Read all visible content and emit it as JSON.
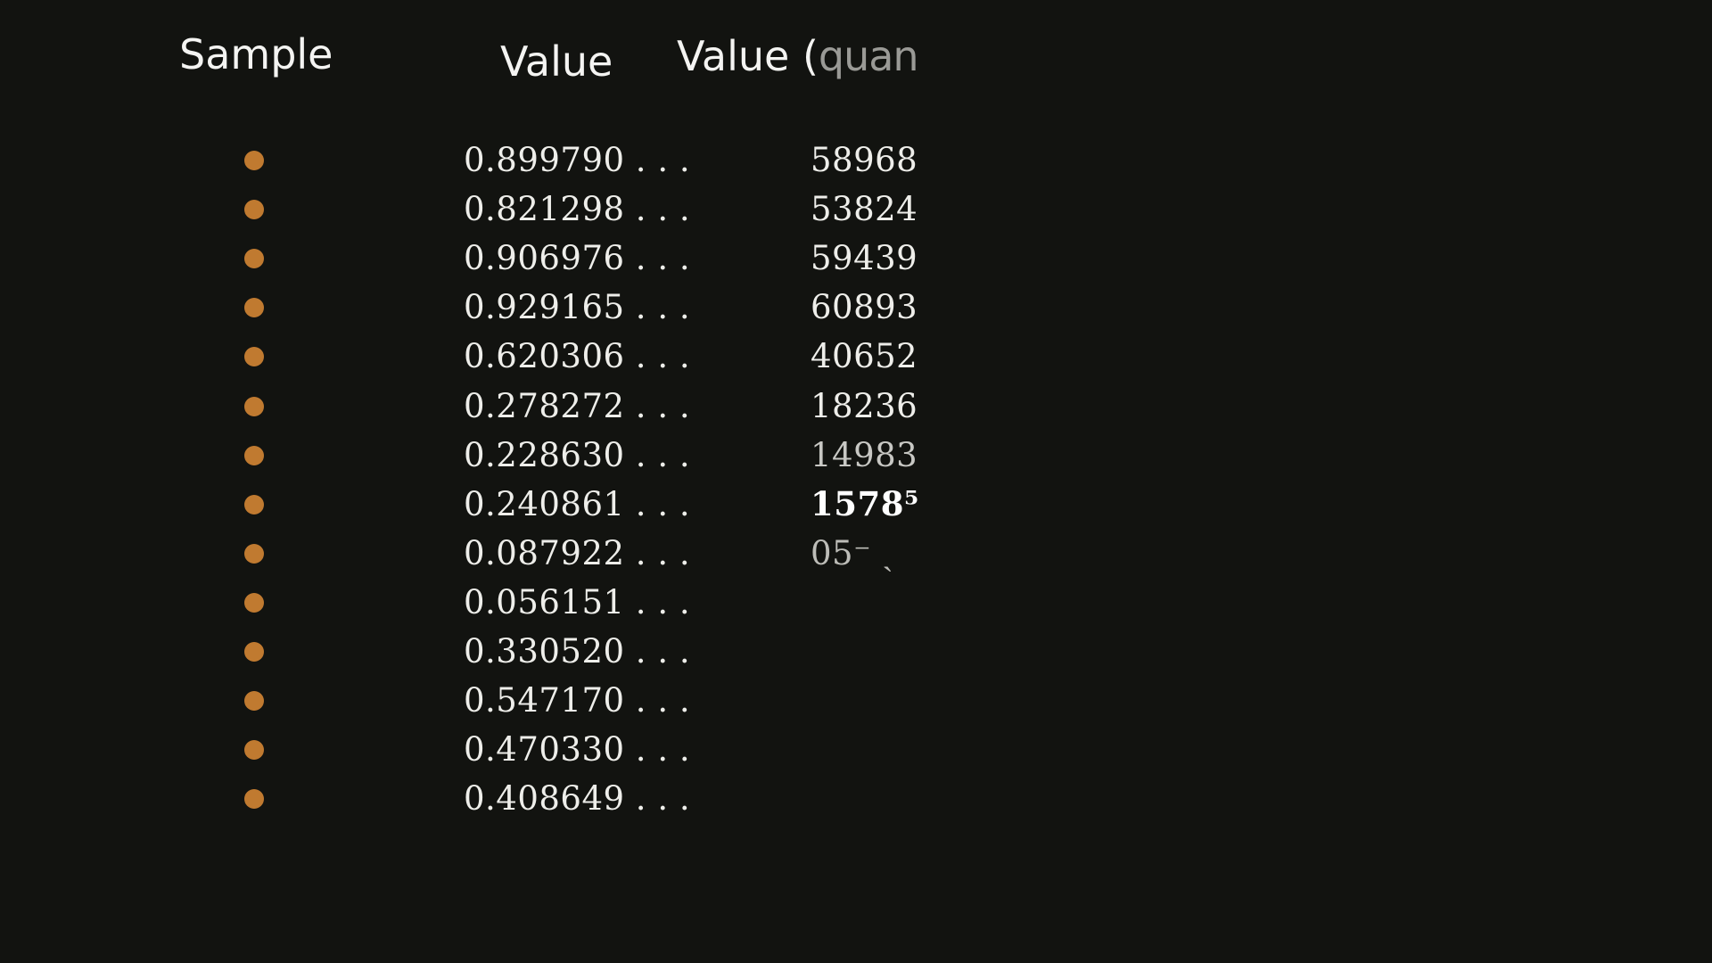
{
  "headers": {
    "sample": "Sample",
    "value": "Value",
    "value_quantized_visible": "Value (",
    "value_quantized_partial": "quan"
  },
  "colors": {
    "background": "#121310",
    "dot": "#c07a30",
    "text": "#f2f2f0"
  },
  "rows": [
    {
      "value": "0.899790 . . .",
      "quantized": "58968"
    },
    {
      "value": "0.821298 . . .",
      "quantized": "53824"
    },
    {
      "value": "0.906976 . . .",
      "quantized": "59439"
    },
    {
      "value": "0.929165 . . .",
      "quantized": "60893"
    },
    {
      "value": "0.620306 . . .",
      "quantized": "40652"
    },
    {
      "value": "0.278272 . . .",
      "quantized": "18236"
    },
    {
      "value": "0.228630 . . .",
      "quantized": "14983"
    },
    {
      "value": "0.240861 . . .",
      "quantized": "1578⁵"
    },
    {
      "value": "0.087922 . . .",
      "quantized": "05⁻ ˎ"
    },
    {
      "value": "0.056151 . . .",
      "quantized": ""
    },
    {
      "value": "0.330520 . . .",
      "quantized": ""
    },
    {
      "value": "0.547170 . . .",
      "quantized": ""
    },
    {
      "value": "0.470330 . . .",
      "quantized": ""
    },
    {
      "value": "0.408649 . . .",
      "quantized": ""
    }
  ]
}
